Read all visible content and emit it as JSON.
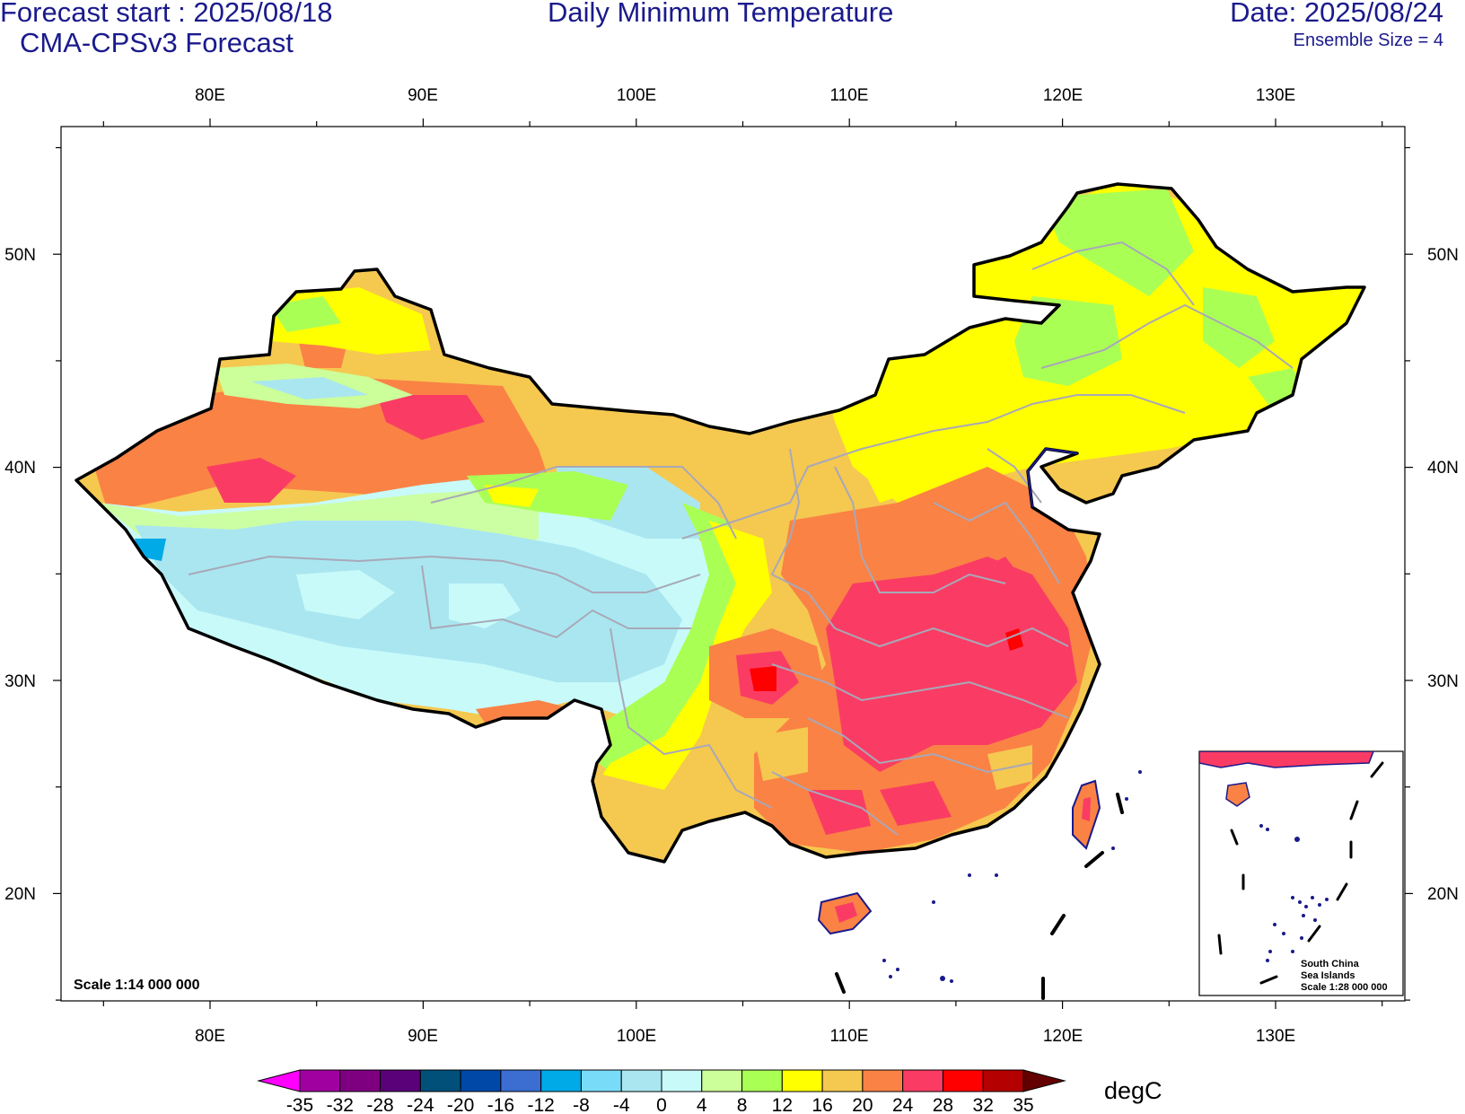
{
  "header": {
    "forecast_start": "Forecast start : 2025/08/18",
    "model": "CMA-CPSv3 Forecast",
    "title": "Daily Minimum Temperature",
    "date": "Date: 2025/08/24",
    "ensemble": "Ensemble Size = 4"
  },
  "map": {
    "lon_ticks": [
      "80E",
      "90E",
      "100E",
      "110E",
      "120E",
      "130E"
    ],
    "lat_ticks": [
      "50N",
      "40N",
      "30N",
      "20N"
    ],
    "scale": "Scale 1:14 000 000",
    "inset": {
      "line1": "South China",
      "line2": "Sea Islands",
      "line3": "Scale 1:28 000 000"
    }
  },
  "colorbar": {
    "unit": "degC",
    "levels": [
      "-35",
      "-32",
      "-28",
      "-24",
      "-20",
      "-16",
      "-12",
      "-8",
      "-4",
      "0",
      "4",
      "8",
      "12",
      "16",
      "20",
      "24",
      "28",
      "32",
      "35"
    ],
    "colors": [
      "#ff00ff",
      "#a000a0",
      "#7e0080",
      "#5a0078",
      "#00507a",
      "#0048a8",
      "#3c6ed2",
      "#00aae6",
      "#78dcf8",
      "#aae6f0",
      "#c8fafa",
      "#ccff99",
      "#aaff55",
      "#ffff00",
      "#f5c850",
      "#fa8245",
      "#fa3c64",
      "#ff0000",
      "#b40000",
      "#640000"
    ]
  }
}
